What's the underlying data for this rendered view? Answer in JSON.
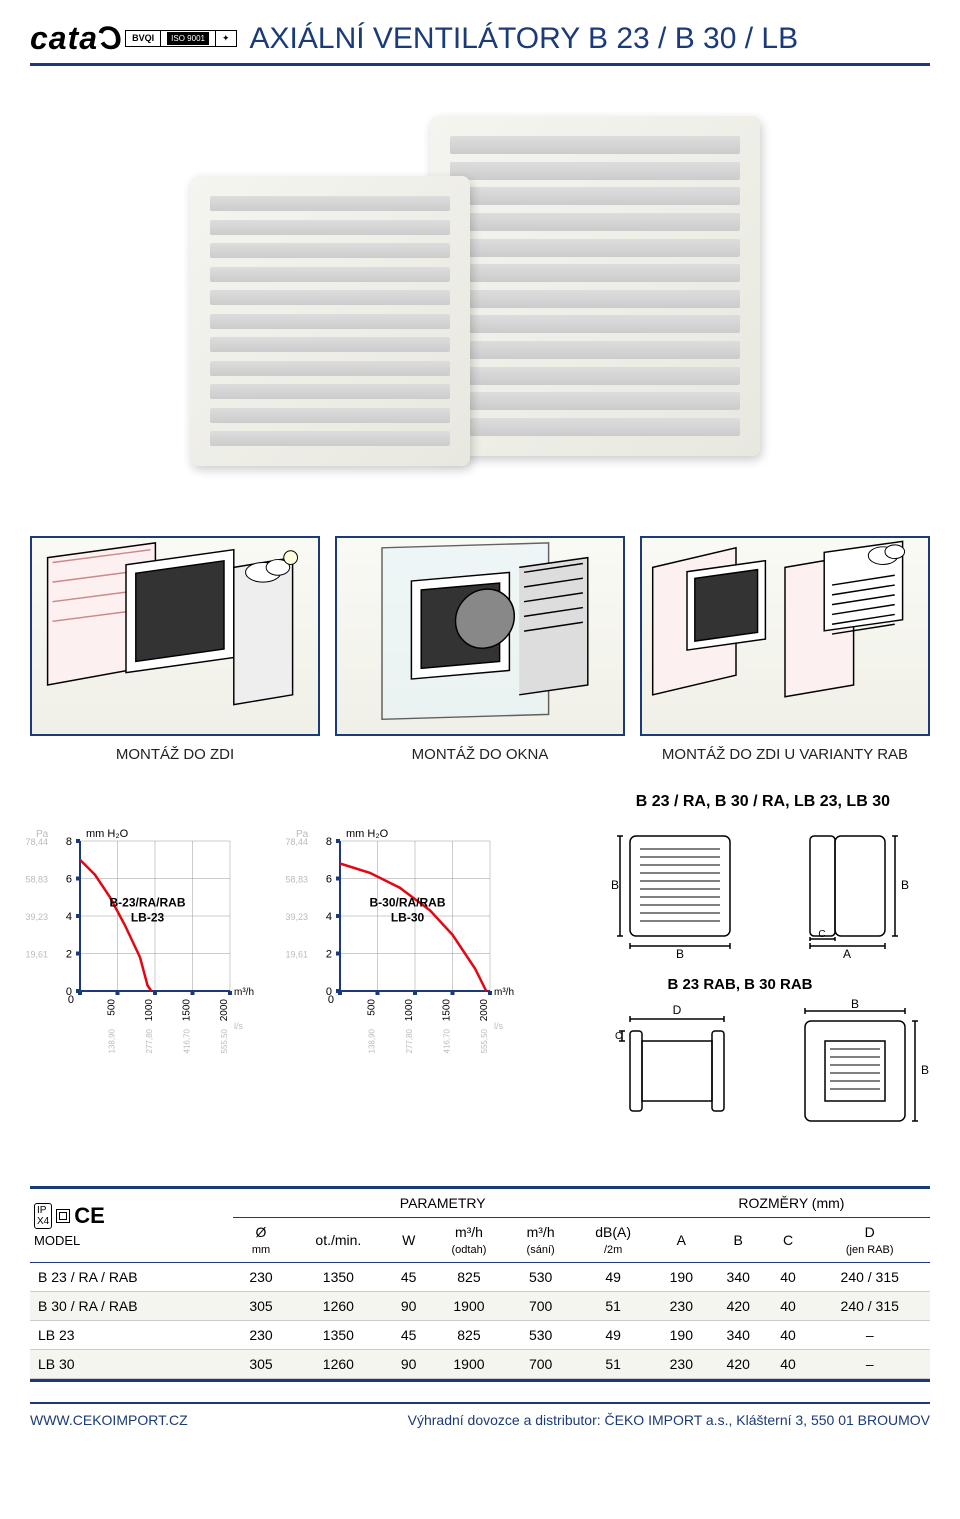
{
  "colors": {
    "brand": "#1a3a7a",
    "curve": "#e30613",
    "axis": "#1a3a7a",
    "grid": "#999",
    "bg": "#ffffff"
  },
  "header": {
    "logo": "cata",
    "cert": {
      "iso": "ISO 9001"
    },
    "title": "AXIÁLNÍ VENTILÁTORY B 23 / B 30 / LB"
  },
  "install": {
    "labels": [
      "MONTÁŽ DO ZDI",
      "MONTÁŽ DO OKNA",
      "MONTÁŽ DO ZDI U VARIANTY RAB"
    ]
  },
  "dim_heading_1": "B 23 / RA, B 30 / RA, LB 23, LB 30",
  "dim_heading_2": "B 23 RAB, B 30 RAB",
  "charts": [
    {
      "type": "line",
      "label": "B-23/RA/RAB",
      "label2": "LB-23",
      "y_unit": "mm H₂O",
      "y2_unit": "Pa",
      "x_unit": "m³/h",
      "x2_unit": "l/s",
      "y_ticks": [
        0,
        2,
        4,
        6,
        8
      ],
      "y2_labels": [
        "",
        "19,61",
        "39,23",
        "58,83",
        "78,44"
      ],
      "x_ticks": [
        0,
        500,
        1000,
        1500,
        2000
      ],
      "x2_labels": [
        "",
        "138,90",
        "277,80",
        "416,70",
        "555,50"
      ],
      "xlim": [
        0,
        2000
      ],
      "ylim": [
        0,
        8
      ],
      "curve_color": "#e30613",
      "line_width": 2.5,
      "points": [
        [
          0,
          7.0
        ],
        [
          200,
          6.2
        ],
        [
          400,
          5.0
        ],
        [
          600,
          3.5
        ],
        [
          800,
          1.8
        ],
        [
          900,
          0.3
        ],
        [
          950,
          0
        ]
      ]
    },
    {
      "type": "line",
      "label": "B-30/RA/RAB",
      "label2": "LB-30",
      "y_unit": "mm H₂O",
      "y2_unit": "Pa",
      "x_unit": "m³/h",
      "x2_unit": "l/s",
      "y_ticks": [
        0,
        2,
        4,
        6,
        8
      ],
      "y2_labels": [
        "",
        "19,61",
        "39,23",
        "58,83",
        "78,44"
      ],
      "x_ticks": [
        0,
        500,
        1000,
        1500,
        2000
      ],
      "x2_labels": [
        "",
        "138,90",
        "277,80",
        "416,70",
        "555,50"
      ],
      "xlim": [
        0,
        2000
      ],
      "ylim": [
        0,
        8
      ],
      "curve_color": "#e30613",
      "line_width": 2.5,
      "points": [
        [
          0,
          6.8
        ],
        [
          400,
          6.3
        ],
        [
          800,
          5.5
        ],
        [
          1200,
          4.3
        ],
        [
          1500,
          3.0
        ],
        [
          1800,
          1.2
        ],
        [
          1950,
          0
        ]
      ]
    }
  ],
  "table": {
    "group_headers": [
      "PARAMETRY",
      "ROZMĚRY (mm)"
    ],
    "columns": [
      "MODEL",
      "Ø mm",
      "ot./min.",
      "W",
      "m³/h (odtah)",
      "m³/h (sání)",
      "dB(A) /2m",
      "A",
      "B",
      "C",
      "D (jen RAB)"
    ],
    "rows": [
      [
        "B 23 / RA / RAB",
        "230",
        "1350",
        "45",
        "825",
        "530",
        "49",
        "190",
        "340",
        "40",
        "240 / 315"
      ],
      [
        "B 30 / RA / RAB",
        "305",
        "1260",
        "90",
        "1900",
        "700",
        "51",
        "230",
        "420",
        "40",
        "240 / 315"
      ],
      [
        "LB 23",
        "230",
        "1350",
        "45",
        "825",
        "530",
        "49",
        "190",
        "340",
        "40",
        "–"
      ],
      [
        "LB 30",
        "305",
        "1260",
        "90",
        "1900",
        "700",
        "51",
        "230",
        "420",
        "40",
        "–"
      ]
    ]
  },
  "footer": {
    "url": "WWW.CEKOIMPORT.CZ",
    "text": "Výhradní dovozce a distributor: ČEKO IMPORT a.s., Klášterní 3, 550 01 BROUMOV"
  }
}
